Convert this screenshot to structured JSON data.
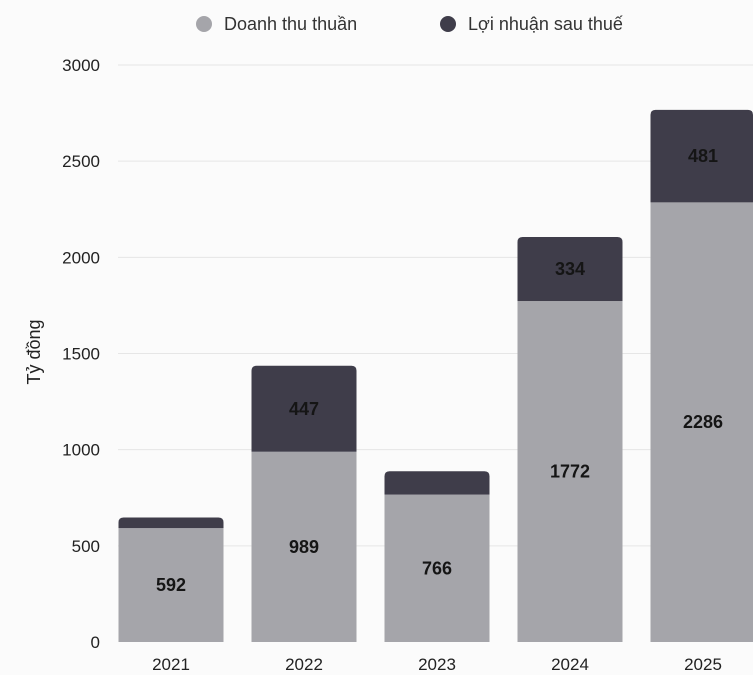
{
  "chart_data": {
    "type": "bar",
    "stacked": true,
    "categories": [
      "2021",
      "2022",
      "2023",
      "2024",
      "2025"
    ],
    "series": [
      {
        "name": "Doanh thu thuần",
        "values": [
          592,
          989,
          766,
          1772,
          2286
        ],
        "color": "#a5a5aa",
        "label_values": [
          "592",
          "989",
          "766",
          "1772",
          "2286"
        ]
      },
      {
        "name": "Lợi nhuận sau thuế",
        "values": [
          55,
          447,
          122,
          334,
          481
        ],
        "color": "#3f3d4a",
        "label_values": [
          "",
          "447",
          "",
          "334",
          "481"
        ]
      }
    ],
    "ylabel": "Tỷ đồng",
    "xlabel": "",
    "ylim": [
      0,
      3000
    ],
    "yticks": [
      "0",
      "500",
      "1000",
      "1500",
      "2000",
      "2500",
      "3000"
    ],
    "grid": true,
    "legend_position": "top"
  }
}
